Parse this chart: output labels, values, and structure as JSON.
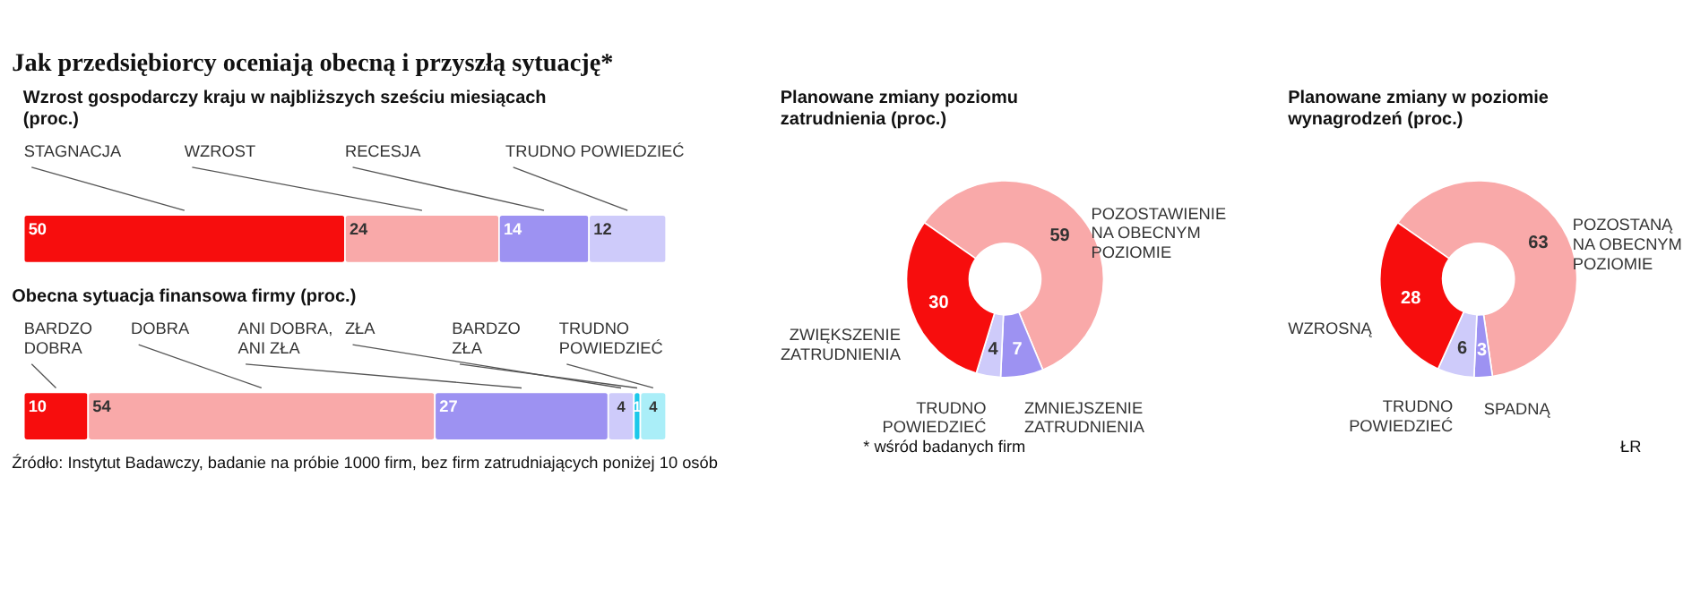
{
  "chart_data": [
    {
      "type": "bar",
      "orientation": "horizontal",
      "stacked": true,
      "title": "Jak przedsiębiorcy oceniają obecną i przyszłą sytuację*",
      "subtitle": "Wzrost gospodarczy kraju w najbliższych sześciu miesiącach (proc.)",
      "categories": [
        null
      ],
      "data_labels": true,
      "series": [
        {
          "name": "STAGNACJA",
          "color": "#f70d0d",
          "values": [
            50
          ]
        },
        {
          "name": "WZROST",
          "color": "#f9a9a9",
          "values": [
            24
          ]
        },
        {
          "name": "RECESJA",
          "color": "#9d92f2",
          "values": [
            14
          ]
        },
        {
          "name": "TRUDNO POWIEDZIEĆ",
          "color": "#cecbfa",
          "values": [
            12
          ]
        }
      ]
    },
    {
      "type": "bar",
      "orientation": "horizontal",
      "stacked": true,
      "title": "Obecna sytuacja finansowa firmy (proc.)",
      "categories": [
        null
      ],
      "data_labels": true,
      "annotations": [
        "Źródło: Instytut Badawczy, badanie na próbie 1000 firm, bez firm zatrudniających poniżej 10 osób"
      ],
      "series": [
        {
          "name": "BARDZO\nDOBRA",
          "color": "#f70d0d",
          "values": [
            10
          ]
        },
        {
          "name": "DOBRA",
          "color": "#f9a9a9",
          "values": [
            54
          ]
        },
        {
          "name": "ANI DOBRA,\nANI ZŁA",
          "color": "#9d92f2",
          "values": [
            27
          ]
        },
        {
          "name": "ZŁA",
          "color": "#cecbfa",
          "values": [
            4
          ]
        },
        {
          "name": "BARDZO\nZŁA",
          "color": "#1cc8ea",
          "values": [
            1
          ]
        },
        {
          "name": "TRUDNO\nPOWIEDZIEĆ",
          "color": "#aaeef8",
          "values": [
            4
          ]
        }
      ]
    },
    {
      "type": "donut",
      "title": "Planowane zmiany poziomu zatrudnienia (proc.)",
      "data_labels": true,
      "annotations": [
        "* wśród badanych firm"
      ],
      "categories": [
        "POZOSTAWIENIE\nNA OBECNYM\nPOZIOMIE",
        "ZMNIEJSZENIE\nZATRUDNIENIA",
        "TRUDNO\nPOWIEDZIEĆ",
        "ZWIĘKSZENIE\nZATRUDNIENIA"
      ],
      "values": [
        59,
        7,
        4,
        30
      ],
      "colors": [
        "#f9a9a9",
        "#9d92f2",
        "#cecbfa",
        "#f70d0d"
      ]
    },
    {
      "type": "donut",
      "title": "Planowane zmiany w poziomie wynagrodzeń (proc.)",
      "data_labels": true,
      "annotations": [
        "ŁR"
      ],
      "categories": [
        "POZOSTANĄ\nNA OBECNYM\nPOZIOMIE",
        "SPADNĄ",
        "TRUDNO\nPOWIEDZIEĆ",
        "WZROSNĄ"
      ],
      "values": [
        63,
        3,
        6,
        28
      ],
      "colors": [
        "#f9a9a9",
        "#9d92f2",
        "#cecbfa",
        "#f70d0d"
      ]
    }
  ]
}
